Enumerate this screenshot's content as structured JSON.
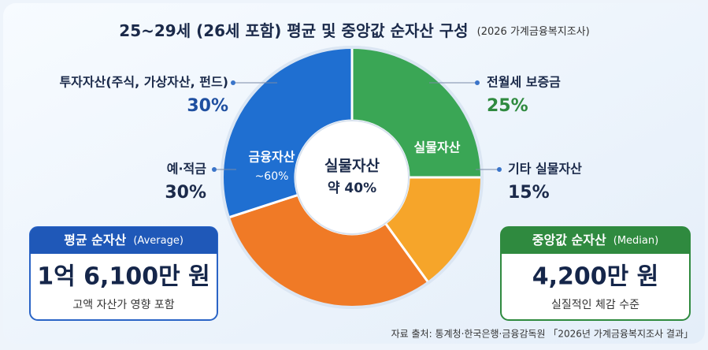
{
  "chart_data": {
    "type": "pie",
    "title": "25~29세 (26세 포함) 평균 및 중앙값 순자산 구성",
    "subtitle": "(2026 가계금융복지조사)",
    "categories": [
      "전월세 보증금",
      "기타 실물자산",
      "예·적금",
      "투자자산(주식, 가상자산, 펀드)"
    ],
    "values": [
      25,
      15,
      30,
      30
    ],
    "value_labels": [
      "25%",
      "15%",
      "30%",
      "30%"
    ],
    "colors": [
      "#3aa655",
      "#f6a52a",
      "#f07a26",
      "#1f6fd1"
    ],
    "groups": [
      {
        "name": "금융자산",
        "label": "~60%"
      },
      {
        "name": "실물자산"
      }
    ],
    "center": {
      "title": "실물자산",
      "label": "약 40%"
    },
    "average": {
      "title": "평균 순자산",
      "note": "(Average)",
      "value": "1억 6,100만 원",
      "caption": "고액 자산가 영향 포함"
    },
    "median": {
      "title": "중앙값 순자산",
      "note": "(Median)",
      "value": "4,200만 원",
      "caption": "실질적인 체감 수준"
    },
    "source": "자료 출처: 통계청·한국은행·금융감독원 「2026년 가계금융복지조사 결과」"
  }
}
